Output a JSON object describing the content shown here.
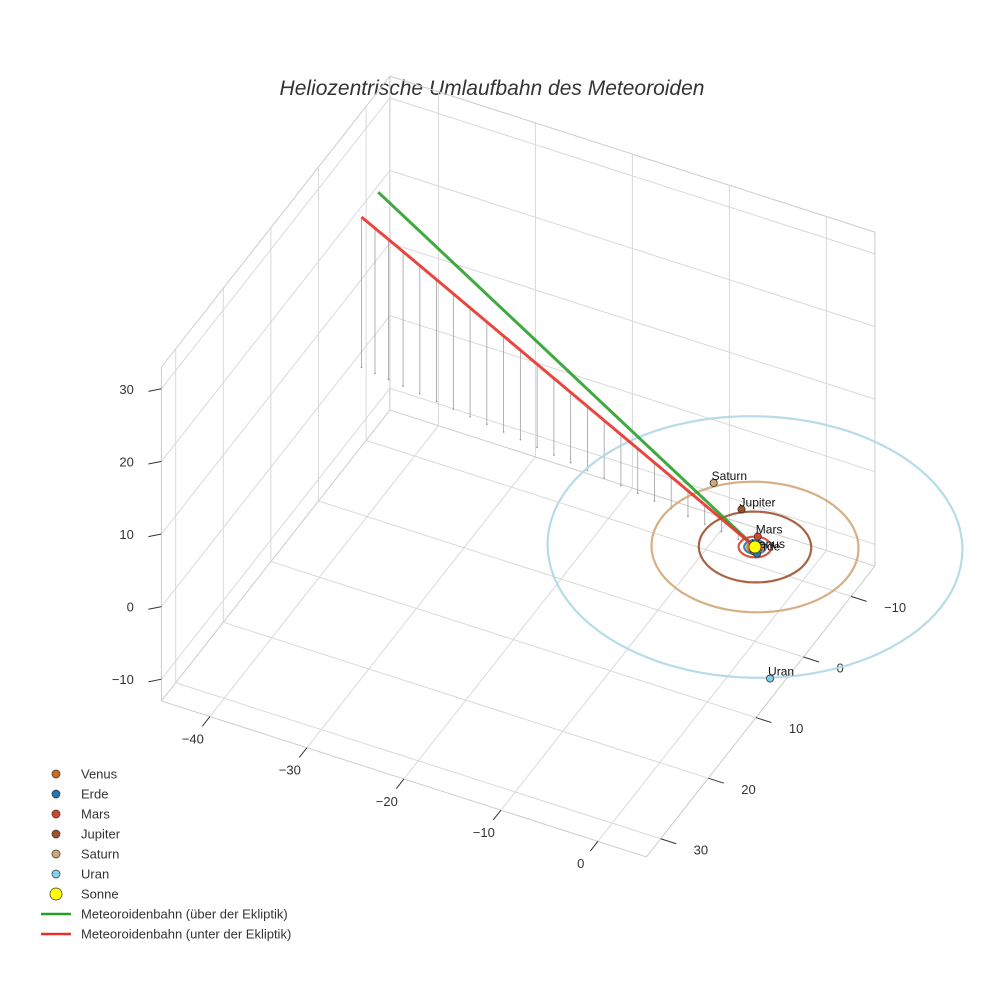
{
  "chart_data": {
    "type": "scatter3d",
    "title": "Heliozentrische Umlaufbahn des Meteoroiden",
    "axes": {
      "x": {
        "ticks": [
          -40,
          -30,
          -20,
          -10,
          0
        ],
        "tick_labels": [
          "−40",
          "−30",
          "−20",
          "−10",
          "0"
        ],
        "range": [
          -45,
          5
        ]
      },
      "y": {
        "ticks": [
          -10,
          0,
          10,
          20,
          30
        ],
        "tick_labels": [
          "−10",
          "0",
          "10",
          "20",
          "30"
        ],
        "range": [
          -15,
          33
        ]
      },
      "z": {
        "ticks": [
          -10,
          0,
          10,
          20,
          30
        ],
        "tick_labels": [
          "−10",
          "0",
          "10",
          "20",
          "30"
        ],
        "range": [
          -13,
          33
        ]
      }
    },
    "planets": [
      {
        "name": "Venus",
        "label": "Venus",
        "color": "#d2691e",
        "x": 0.2,
        "y": 0.7,
        "z": 0.1,
        "orbit_radius": 0.72
      },
      {
        "name": "Erde",
        "label": "Erde",
        "color": "#1f77b4",
        "x": 0.6,
        "y": 0.8,
        "z": 0.0,
        "orbit_radius": 1.0
      },
      {
        "name": "Mars",
        "label": "Mars",
        "color": "#d2452a",
        "x": -0.4,
        "y": -1.4,
        "z": 0.1,
        "orbit_radius": 1.52
      },
      {
        "name": "Jupiter",
        "label": "Jupiter",
        "color": "#a0522d",
        "x": -3.5,
        "y": -4.3,
        "z": 0.1,
        "orbit_radius": 5.2
      },
      {
        "name": "Saturn",
        "label": "Saturn",
        "color": "#d2a679",
        "x": -7.4,
        "y": -6.4,
        "z": 0.3,
        "orbit_radius": 9.58
      },
      {
        "name": "Uran",
        "label": "Uran",
        "color": "#87ceeb",
        "x": 9.6,
        "y": 16.4,
        "z": -0.3,
        "orbit_radius": 19.2
      }
    ],
    "orbit_colors": {
      "Venus": "#d2691e",
      "Erde": "#1f77b4",
      "Mars": "#d2452a",
      "Jupiter": "#a0522d",
      "Saturn": "#d2a679",
      "Uran": "#add8e6"
    },
    "sun": {
      "name": "Sonne",
      "color": "#ffff00",
      "x": 0,
      "y": 0,
      "z": 0
    },
    "meteoroid": {
      "above": {
        "name": "Meteoroidenbahn (über der Ekliptik)",
        "color": "#2ca02c",
        "x": [
          0,
          -5,
          -10,
          -15,
          -20,
          -25,
          -30,
          -35,
          -40,
          -44
        ],
        "y": [
          0,
          -1.2,
          -2.4,
          -3.6,
          -4.8,
          -6,
          -7.2,
          -8.4,
          -9.6,
          -10.5
        ],
        "z": [
          0,
          2.4,
          4.8,
          7.2,
          9.6,
          12,
          14.4,
          16.8,
          19.2,
          21.2
        ]
      },
      "below": {
        "name": "Meteoroidenbahn (unter der Ekliptik)",
        "color": "#e8312a",
        "x": [
          0,
          -5,
          -10,
          -15,
          -20,
          -25,
          -30,
          -35,
          -40,
          -44
        ],
        "y": [
          0,
          -0.8,
          -1.6,
          -2.4,
          -3.2,
          -4.0,
          -4.8,
          -5.6,
          -6.4,
          -7.0
        ],
        "z": [
          0,
          2.35,
          4.7,
          7.05,
          9.4,
          11.75,
          14.1,
          16.45,
          18.8,
          20.7
        ]
      }
    },
    "legend": {
      "position": "bottom-left",
      "entries": [
        {
          "label": "Venus",
          "symbol": "marker",
          "color": "#d2691e"
        },
        {
          "label": "Erde",
          "symbol": "marker",
          "color": "#1f77b4"
        },
        {
          "label": "Mars",
          "symbol": "marker",
          "color": "#d2452a"
        },
        {
          "label": "Jupiter",
          "symbol": "marker",
          "color": "#a0522d"
        },
        {
          "label": "Saturn",
          "symbol": "marker",
          "color": "#d2a679"
        },
        {
          "label": "Uran",
          "symbol": "marker",
          "color": "#87ceeb"
        },
        {
          "label": "Sonne",
          "symbol": "sun",
          "color": "#ffff00"
        },
        {
          "label": "Meteoroidenbahn (über der Ekliptik)",
          "symbol": "line",
          "color": "#22a022"
        },
        {
          "label": "Meteoroidenbahn (unter der Ekliptik)",
          "symbol": "line",
          "color": "#e8312a"
        }
      ]
    }
  }
}
